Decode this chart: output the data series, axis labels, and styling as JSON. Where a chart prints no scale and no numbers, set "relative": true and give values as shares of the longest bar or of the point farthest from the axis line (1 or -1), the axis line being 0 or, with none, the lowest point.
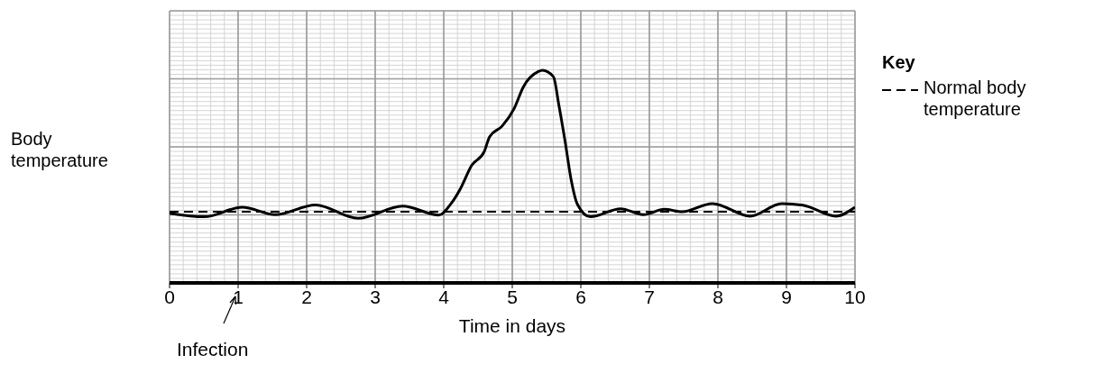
{
  "chart_data": {
    "type": "line",
    "relative": true,
    "xlabel": "Time in days",
    "ylabel": "Body temperature",
    "legend_title": "Key",
    "legend": "right",
    "grid": true,
    "marker": "none",
    "line_style": "solid",
    "xlim": [
      0,
      10
    ],
    "xticks": [
      0,
      1,
      2,
      3,
      4,
      5,
      6,
      7,
      8,
      9,
      10
    ],
    "x": [
      0,
      0.51,
      1.06,
      1.54,
      2.13,
      2.75,
      3.4,
      3.93,
      4.1,
      4.24,
      4.41,
      4.59,
      4.67,
      4.85,
      5.03,
      5.16,
      5.38,
      5.44,
      5.6,
      5.68,
      5.77,
      5.86,
      5.95,
      6.14,
      6.58,
      6.91,
      7.22,
      7.48,
      7.92,
      8.47,
      8.93,
      9.24,
      9.72,
      10
    ],
    "series": [
      {
        "color": "#000000",
        "values": [
          0.328,
          0.311,
          0.356,
          0.321,
          0.367,
          0.304,
          0.361,
          0.319,
          0.37,
          0.441,
          0.554,
          0.617,
          0.688,
          0.737,
          0.822,
          0.921,
          0.994,
          1,
          0.97,
          0.836,
          0.667,
          0.483,
          0.37,
          0.311,
          0.349,
          0.321,
          0.346,
          0.335,
          0.373,
          0.314,
          0.373,
          0.366,
          0.314,
          0.356
        ]
      }
    ],
    "ref_lines": [
      {
        "axis": "y",
        "value": 0.335,
        "label": "Normal body temperature",
        "color": "#000000",
        "line_style": "dashed"
      }
    ],
    "annotations": [
      "Infection"
    ]
  }
}
